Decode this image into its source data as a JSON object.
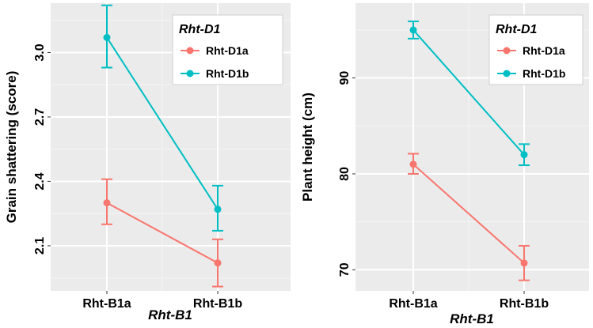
{
  "chart_data": [
    {
      "type": "line",
      "categories": [
        "Rht-B1a",
        "Rht-B1b"
      ],
      "xlabel": "Rht-B1",
      "ylabel": "Grain shattering (score)",
      "ylim": [
        1.89,
        3.23
      ],
      "yticks": [
        2.1,
        2.4,
        2.7,
        3.0
      ],
      "ytick_labels": [
        "2.1",
        "2.4",
        "2.7",
        "3.0"
      ],
      "legend_title": "Rht-D1",
      "legend_position": "top-right",
      "grid": true,
      "series": [
        {
          "name": "Rht-D1a",
          "color": "#f8766d",
          "values": [
            2.3,
            2.02
          ],
          "error_low": [
            2.2,
            1.91
          ],
          "error_high": [
            2.41,
            2.13
          ]
        },
        {
          "name": "Rht-D1b",
          "color": "#00bfc4",
          "values": [
            3.07,
            2.27
          ],
          "error_low": [
            2.93,
            2.17
          ],
          "error_high": [
            3.22,
            2.38
          ]
        }
      ]
    },
    {
      "type": "line",
      "categories": [
        "Rht-B1a",
        "Rht-B1b"
      ],
      "xlabel": "Rht-B1",
      "ylabel": "Plant height (cm)",
      "ylim": [
        67.8,
        97.8
      ],
      "yticks": [
        70,
        80,
        90
      ],
      "ytick_labels": [
        "70",
        "80",
        "90"
      ],
      "legend_title": "Rht-D1",
      "legend_position": "top-right",
      "grid": true,
      "series": [
        {
          "name": "Rht-D1a",
          "color": "#f8766d",
          "values": [
            81.0,
            70.7
          ],
          "error_low": [
            80.0,
            68.9
          ],
          "error_high": [
            82.1,
            72.5
          ]
        },
        {
          "name": "Rht-D1b",
          "color": "#00bfc4",
          "values": [
            95.0,
            82.0
          ],
          "error_low": [
            94.1,
            80.9
          ],
          "error_high": [
            95.9,
            83.1
          ]
        }
      ]
    }
  ]
}
